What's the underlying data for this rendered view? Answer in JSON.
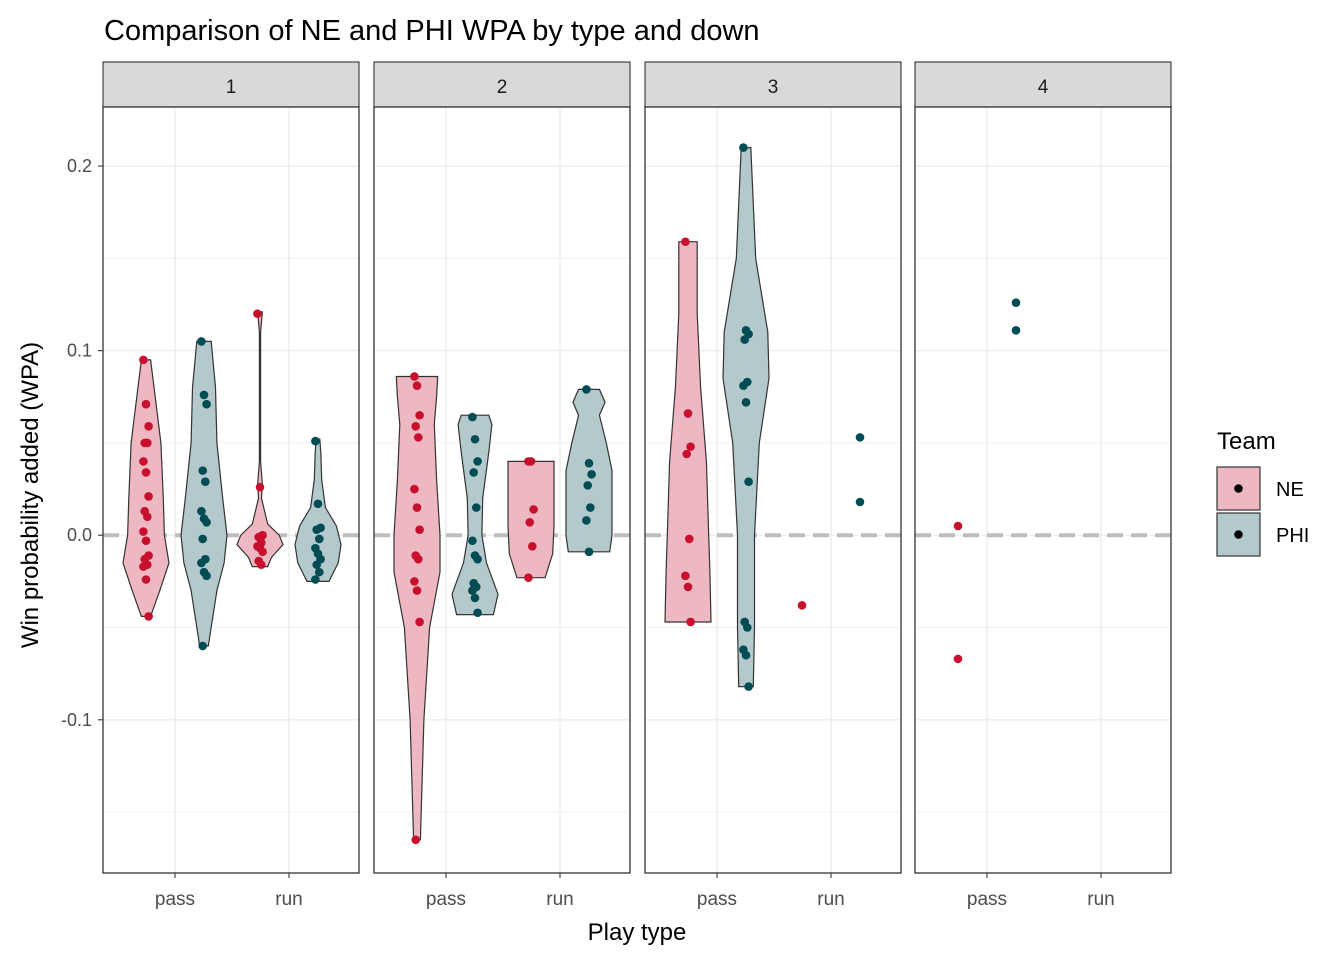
{
  "chart_data": {
    "type": "violin",
    "title": "Comparison of NE and PHI WPA by type and down",
    "xlabel": "Play type",
    "ylabel": "Win probability added (WPA)",
    "ylim": [
      -0.183,
      0.232
    ],
    "y_ticks": [
      -0.1,
      0.0,
      0.1,
      0.2
    ],
    "y_tick_labels": [
      "-0.1",
      "0.0",
      "0.1",
      "0.2"
    ],
    "categories": [
      "pass",
      "run"
    ],
    "grid": true,
    "reference_line": {
      "y": 0,
      "style": "dashed",
      "color": "#bebebe"
    },
    "legend": {
      "title": "Team",
      "placement": "right",
      "entries": [
        {
          "name": "NE",
          "point_color": "#c8102e",
          "fill": "#eeb8c2"
        },
        {
          "name": "PHI",
          "point_color": "#004c54",
          "fill": "#b3c9cc"
        }
      ]
    },
    "facets": [
      {
        "label": "1",
        "groups": [
          {
            "play": "pass",
            "team": "NE",
            "points": [
              0.095,
              0.071,
              0.059,
              0.05,
              0.05,
              0.04,
              0.034,
              0.021,
              0.013,
              0.01,
              0.002,
              -0.003,
              -0.011,
              -0.013,
              -0.016,
              -0.017,
              -0.024,
              -0.044
            ],
            "violin": [
              [
                -0.044,
                0.2
              ],
              [
                -0.03,
                0.6
              ],
              [
                -0.015,
                1.0
              ],
              [
                0.0,
                0.8
              ],
              [
                0.02,
                0.75
              ],
              [
                0.05,
                0.65
              ],
              [
                0.075,
                0.4
              ],
              [
                0.095,
                0.2
              ]
            ]
          },
          {
            "play": "pass",
            "team": "PHI",
            "points": [
              0.105,
              0.076,
              0.071,
              0.035,
              0.029,
              0.013,
              0.009,
              0.007,
              -0.002,
              -0.013,
              -0.015,
              -0.02,
              -0.022,
              -0.06
            ],
            "violin": [
              [
                -0.06,
                0.15
              ],
              [
                -0.03,
                0.45
              ],
              [
                -0.015,
                0.7
              ],
              [
                0.0,
                0.8
              ],
              [
                0.02,
                0.65
              ],
              [
                0.05,
                0.45
              ],
              [
                0.08,
                0.4
              ],
              [
                0.105,
                0.25
              ]
            ]
          },
          {
            "play": "run",
            "team": "NE",
            "points": [
              0.12,
              0.026,
              0.0,
              -0.001,
              -0.004,
              -0.006,
              -0.007,
              -0.009,
              -0.014,
              -0.016
            ],
            "violin": [
              [
                -0.017,
                2.0
              ],
              [
                -0.012,
                3.0
              ],
              [
                -0.005,
                6.0
              ],
              [
                0.0,
                5.0
              ],
              [
                0.006,
                2.0
              ],
              [
                0.02,
                0.4
              ],
              [
                0.028,
                0.6
              ],
              [
                0.04,
                0.15
              ],
              [
                0.11,
                0.15
              ],
              [
                0.121,
                0.6
              ]
            ]
          },
          {
            "play": "run",
            "team": "PHI",
            "points": [
              0.051,
              0.017,
              0.004,
              0.003,
              -0.002,
              -0.007,
              -0.01,
              -0.013,
              -0.016,
              -0.02,
              -0.024
            ],
            "violin": [
              [
                -0.025,
                1.2
              ],
              [
                -0.015,
                2.2
              ],
              [
                -0.005,
                2.5
              ],
              [
                0.005,
                2.0
              ],
              [
                0.015,
                0.8
              ],
              [
                0.03,
                0.4
              ],
              [
                0.045,
                0.3
              ],
              [
                0.052,
                0.2
              ]
            ]
          }
        ]
      },
      {
        "label": "2",
        "groups": [
          {
            "play": "pass",
            "team": "NE",
            "points": [
              0.086,
              0.081,
              0.065,
              0.059,
              0.053,
              0.025,
              0.015,
              0.003,
              -0.011,
              -0.013,
              -0.025,
              -0.03,
              -0.047,
              -0.165
            ],
            "violin": [
              [
                -0.165,
                0.15
              ],
              [
                -0.1,
                0.3
              ],
              [
                -0.05,
                0.55
              ],
              [
                -0.02,
                1.0
              ],
              [
                0.0,
                1.0
              ],
              [
                0.03,
                0.85
              ],
              [
                0.06,
                0.75
              ],
              [
                0.075,
                0.85
              ],
              [
                0.086,
                0.9
              ]
            ]
          },
          {
            "play": "pass",
            "team": "PHI",
            "points": [
              0.064,
              0.052,
              0.04,
              0.034,
              0.015,
              -0.003,
              -0.011,
              -0.013,
              -0.026,
              -0.028,
              -0.03,
              -0.034,
              -0.042
            ],
            "violin": [
              [
                -0.043,
                1.2
              ],
              [
                -0.032,
                1.5
              ],
              [
                -0.015,
                0.75
              ],
              [
                0.0,
                0.45
              ],
              [
                0.02,
                0.5
              ],
              [
                0.045,
                0.9
              ],
              [
                0.06,
                1.1
              ],
              [
                0.065,
                0.9
              ]
            ]
          },
          {
            "play": "run",
            "team": "NE",
            "points": [
              0.04,
              0.04,
              0.014,
              0.007,
              -0.006,
              -0.023
            ],
            "violin": [
              [
                -0.023,
                0.55
              ],
              [
                -0.01,
                0.85
              ],
              [
                0.005,
                0.9
              ],
              [
                0.02,
                0.9
              ],
              [
                0.035,
                0.9
              ],
              [
                0.04,
                0.9
              ]
            ]
          },
          {
            "play": "run",
            "team": "PHI",
            "points": [
              0.079,
              0.039,
              0.033,
              0.027,
              0.015,
              0.008,
              -0.009
            ],
            "violin": [
              [
                -0.009,
                0.9
              ],
              [
                0.0,
                1.0
              ],
              [
                0.015,
                1.0
              ],
              [
                0.035,
                1.0
              ],
              [
                0.05,
                0.75
              ],
              [
                0.065,
                0.45
              ],
              [
                0.072,
                0.7
              ],
              [
                0.079,
                0.45
              ]
            ]
          }
        ]
      },
      {
        "label": "3",
        "groups": [
          {
            "play": "pass",
            "team": "NE",
            "points": [
              0.159,
              0.066,
              0.048,
              0.044,
              -0.002,
              -0.022,
              -0.028,
              -0.047
            ],
            "violin": [
              [
                -0.047,
                1.0
              ],
              [
                -0.02,
                0.95
              ],
              [
                0.0,
                0.9
              ],
              [
                0.04,
                0.8
              ],
              [
                0.08,
                0.55
              ],
              [
                0.12,
                0.4
              ],
              [
                0.159,
                0.4
              ]
            ]
          },
          {
            "play": "pass",
            "team": "PHI",
            "points": [
              0.21,
              0.111,
              0.109,
              0.106,
              0.083,
              0.081,
              0.072,
              0.029,
              -0.047,
              -0.05,
              -0.062,
              -0.065,
              -0.082
            ],
            "violin": [
              [
                -0.082,
                0.3
              ],
              [
                -0.05,
                0.35
              ],
              [
                0.0,
                0.35
              ],
              [
                0.05,
                0.55
              ],
              [
                0.085,
                0.95
              ],
              [
                0.11,
                0.9
              ],
              [
                0.15,
                0.4
              ],
              [
                0.21,
                0.2
              ]
            ]
          },
          {
            "play": "run",
            "team": "NE",
            "points": [
              -0.038
            ],
            "violin": []
          },
          {
            "play": "run",
            "team": "PHI",
            "points": [
              0.053,
              0.018
            ],
            "violin": []
          }
        ]
      },
      {
        "label": "4",
        "groups": [
          {
            "play": "pass",
            "team": "NE",
            "points": [
              0.005,
              -0.067
            ],
            "violin": []
          },
          {
            "play": "pass",
            "team": "PHI",
            "points": [
              0.126,
              0.111
            ],
            "violin": []
          }
        ]
      }
    ]
  }
}
